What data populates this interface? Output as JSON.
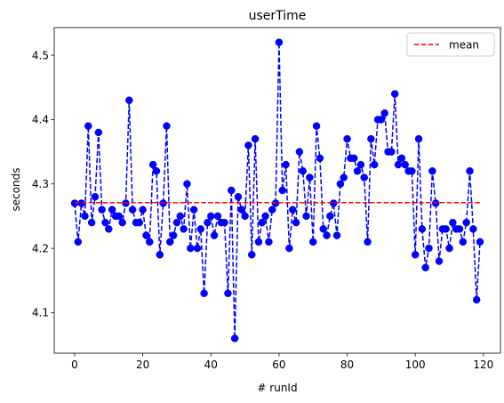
{
  "chart_data": {
    "type": "line",
    "title": "userTime",
    "xlabel": "# runId",
    "ylabel": "seconds",
    "xlim": [
      -6,
      125
    ],
    "ylim": [
      4.037,
      4.543
    ],
    "xticks": [
      0,
      20,
      40,
      60,
      80,
      100,
      120
    ],
    "xtick_labels": [
      "0",
      "20",
      "40",
      "60",
      "80",
      "100",
      "120"
    ],
    "yticks": [
      4.1,
      4.2,
      4.3,
      4.4,
      4.5
    ],
    "ytick_labels": [
      "4.1",
      "4.2",
      "4.3",
      "4.4",
      "4.5"
    ],
    "grid": false,
    "legend_position": "upper right",
    "series": [
      {
        "color": "#0000ff",
        "style": "dashed line with circle markers",
        "x": [
          0,
          1,
          2,
          3,
          4,
          5,
          6,
          7,
          8,
          9,
          10,
          11,
          12,
          13,
          14,
          15,
          16,
          17,
          18,
          19,
          20,
          21,
          22,
          23,
          24,
          25,
          26,
          27,
          28,
          29,
          30,
          31,
          32,
          33,
          34,
          35,
          36,
          37,
          38,
          39,
          40,
          41,
          42,
          43,
          44,
          45,
          46,
          47,
          48,
          49,
          50,
          51,
          52,
          53,
          54,
          55,
          56,
          57,
          58,
          59,
          60,
          61,
          62,
          63,
          64,
          65,
          66,
          67,
          68,
          69,
          70,
          71,
          72,
          73,
          74,
          75,
          76,
          77,
          78,
          79,
          80,
          81,
          82,
          83,
          84,
          85,
          86,
          87,
          88,
          89,
          90,
          91,
          92,
          93,
          94,
          95,
          96,
          97,
          98,
          99,
          100,
          101,
          102,
          103,
          104,
          105,
          106,
          107,
          108,
          109,
          110,
          111,
          112,
          113,
          114,
          115,
          116,
          117,
          118,
          119
        ],
        "y": [
          4.27,
          4.21,
          4.27,
          4.25,
          4.39,
          4.24,
          4.28,
          4.38,
          4.26,
          4.24,
          4.23,
          4.26,
          4.25,
          4.25,
          4.24,
          4.27,
          4.43,
          4.26,
          4.24,
          4.24,
          4.26,
          4.22,
          4.21,
          4.33,
          4.32,
          4.19,
          4.27,
          4.39,
          4.21,
          4.22,
          4.24,
          4.25,
          4.23,
          4.3,
          4.2,
          4.26,
          4.2,
          4.23,
          4.13,
          4.24,
          4.25,
          4.22,
          4.25,
          4.24,
          4.24,
          4.13,
          4.29,
          4.06,
          4.28,
          4.26,
          4.25,
          4.36,
          4.19,
          4.37,
          4.21,
          4.24,
          4.25,
          4.21,
          4.26,
          4.27,
          4.52,
          4.29,
          4.33,
          4.2,
          4.26,
          4.24,
          4.35,
          4.32,
          4.25,
          4.31,
          4.21,
          4.39,
          4.34,
          4.23,
          4.22,
          4.25,
          4.27,
          4.22,
          4.3,
          4.31,
          4.37,
          4.34,
          4.34,
          4.32,
          4.33,
          4.31,
          4.21,
          4.37,
          4.33,
          4.4,
          4.4,
          4.41,
          4.35,
          4.35,
          4.44,
          4.33,
          4.34,
          4.33,
          4.32,
          4.32,
          4.19,
          4.37,
          4.23,
          4.17,
          4.2,
          4.32,
          4.27,
          4.18,
          4.23,
          4.23,
          4.2,
          4.24,
          4.23,
          4.23,
          4.21,
          4.24,
          4.32,
          4.23,
          4.12,
          4.21
        ]
      },
      {
        "name": "mean",
        "color": "#ff0000",
        "style": "dashed line",
        "x": [
          0,
          119
        ],
        "y": [
          4.271,
          4.271
        ]
      }
    ]
  }
}
